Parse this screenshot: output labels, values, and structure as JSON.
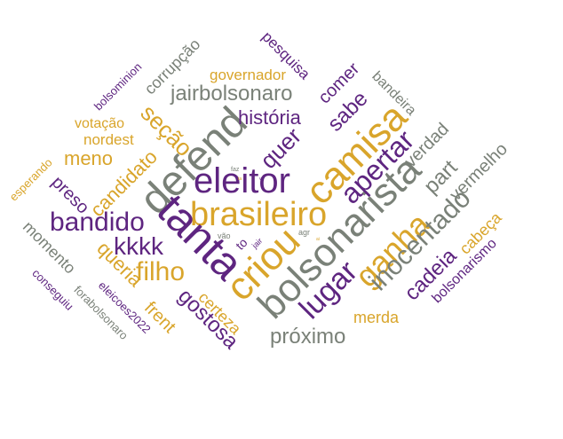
{
  "palette": {
    "gold": "#d9a52b",
    "purple": "#5e2580",
    "gray": "#7a8178"
  },
  "words": [
    {
      "id": "brasileiro",
      "text": "brasileiro",
      "color": "gold"
    },
    {
      "id": "eleitor",
      "text": "eleitor",
      "color": "purple"
    },
    {
      "id": "defend",
      "text": "defend",
      "color": "gray"
    },
    {
      "id": "tanta",
      "text": "tanta",
      "color": "purple"
    },
    {
      "id": "camisa",
      "text": "camisa",
      "color": "gold"
    },
    {
      "id": "bolsonarista",
      "text": "bolsonarista",
      "color": "gray"
    },
    {
      "id": "criou",
      "text": "criou",
      "color": "gold"
    },
    {
      "id": "ganha",
      "text": "ganha",
      "color": "gold"
    },
    {
      "id": "lugar",
      "text": "lugar",
      "color": "purple"
    },
    {
      "id": "apertar",
      "text": "apertar",
      "color": "purple"
    },
    {
      "id": "inocentado",
      "text": "inocentado",
      "color": "gray"
    },
    {
      "id": "bandido",
      "text": "bandido",
      "color": "purple"
    },
    {
      "id": "filho",
      "text": "filho",
      "color": "gold"
    },
    {
      "id": "kkkk",
      "text": "kkkk",
      "color": "purple"
    },
    {
      "id": "jairbolsonaro",
      "text": "jairbolsonaro",
      "color": "gray"
    },
    {
      "id": "historia",
      "text": "história",
      "color": "purple"
    },
    {
      "id": "secao",
      "text": "seção",
      "color": "gold"
    },
    {
      "id": "quer",
      "text": "quer",
      "color": "purple"
    },
    {
      "id": "sabe",
      "text": "sabe",
      "color": "purple"
    },
    {
      "id": "comer",
      "text": "comer",
      "color": "purple"
    },
    {
      "id": "governador",
      "text": "governador",
      "color": "gold"
    },
    {
      "id": "pesquisa",
      "text": "pesquisa",
      "color": "purple"
    },
    {
      "id": "bandeira",
      "text": "bandeira",
      "color": "gray"
    },
    {
      "id": "verdad",
      "text": "verdad",
      "color": "gray"
    },
    {
      "id": "part",
      "text": "part",
      "color": "gray"
    },
    {
      "id": "vermelho",
      "text": "vermelho",
      "color": "gray"
    },
    {
      "id": "cadeia",
      "text": "cadeia",
      "color": "purple"
    },
    {
      "id": "cabeca",
      "text": "cabeça",
      "color": "gold"
    },
    {
      "id": "bolsonarismo",
      "text": "bolsonarismo",
      "color": "purple"
    },
    {
      "id": "proximo",
      "text": "próximo",
      "color": "gray"
    },
    {
      "id": "merda",
      "text": "merda",
      "color": "gold"
    },
    {
      "id": "gostosa",
      "text": "gostosa",
      "color": "purple"
    },
    {
      "id": "certeza",
      "text": "certeza",
      "color": "gold"
    },
    {
      "id": "frent",
      "text": "frent",
      "color": "gold"
    },
    {
      "id": "queria",
      "text": "queria",
      "color": "gold"
    },
    {
      "id": "candidato",
      "text": "candidato",
      "color": "gold"
    },
    {
      "id": "meno",
      "text": "meno",
      "color": "gold"
    },
    {
      "id": "nordest",
      "text": "nordest",
      "color": "gold"
    },
    {
      "id": "votacao",
      "text": "votação",
      "color": "gold"
    },
    {
      "id": "corrupcao",
      "text": "corrupção",
      "color": "gray"
    },
    {
      "id": "bolsominion",
      "text": "bolsominion",
      "color": "purple"
    },
    {
      "id": "preso",
      "text": "preso",
      "color": "purple"
    },
    {
      "id": "momento",
      "text": "momento",
      "color": "gray"
    },
    {
      "id": "esperando",
      "text": "esperando",
      "color": "gold"
    },
    {
      "id": "conseguiu",
      "text": "conseguiu",
      "color": "purple"
    },
    {
      "id": "forabolsonaro",
      "text": "forabolsonaro",
      "color": "gray"
    },
    {
      "id": "eleicoes2022",
      "text": "eleicoes2022",
      "color": "purple"
    },
    {
      "id": "to",
      "text": "to",
      "color": "purple"
    },
    {
      "id": "vao",
      "text": "vão",
      "color": "gray"
    },
    {
      "id": "jair",
      "text": "jair",
      "color": "purple"
    },
    {
      "id": "agr",
      "text": "agr",
      "color": "gray"
    },
    {
      "id": "faz",
      "text": "faz",
      "color": "gray"
    },
    {
      "id": "tiny1",
      "text": "ta",
      "color": "gold"
    },
    {
      "id": "tiny2",
      "text": "vc",
      "color": "purple"
    },
    {
      "id": "tiny3",
      "text": "ai",
      "color": "gold"
    }
  ]
}
